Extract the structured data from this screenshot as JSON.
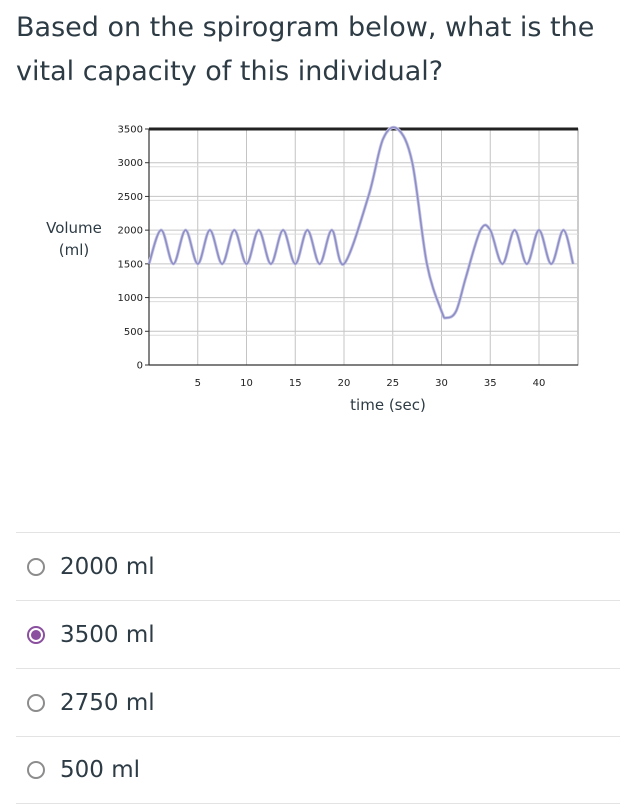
{
  "question": {
    "text": "Based on the spirogram below, what is the vital capacity of this individual?"
  },
  "chart_data": {
    "type": "line",
    "title": "",
    "xlabel": "time (sec)",
    "ylabel": "Volume (ml)",
    "xlim": [
      0,
      44
    ],
    "ylim": [
      0,
      3500
    ],
    "x_ticks": [
      5,
      10,
      15,
      20,
      25,
      30,
      35,
      40
    ],
    "y_ticks": [
      0,
      500,
      1000,
      1500,
      2000,
      2500,
      3000,
      3500
    ],
    "grid": true,
    "series": [
      {
        "color": "#8e8ec7",
        "x": [
          0,
          1.25,
          2.5,
          3.75,
          5,
          6.25,
          7.5,
          8.75,
          10,
          11.25,
          12.5,
          13.75,
          15,
          16.25,
          17.5,
          18.75,
          20,
          22.5,
          24,
          25.5,
          27,
          28.5,
          30,
          30.5,
          31.5,
          32.5,
          34,
          35,
          36.25,
          37.5,
          38.75,
          40,
          41.25,
          42.5,
          43.5
        ],
        "y": [
          1500,
          2000,
          1500,
          2000,
          1500,
          2000,
          1500,
          2000,
          1500,
          2000,
          1500,
          2000,
          1500,
          2000,
          1500,
          2000,
          1500,
          2500,
          3350,
          3500,
          3000,
          1500,
          800,
          700,
          800,
          1300,
          2000,
          2000,
          1500,
          2000,
          1500,
          2000,
          1500,
          2000,
          1500
        ]
      }
    ]
  },
  "answers": [
    {
      "label": "2000 ml",
      "selected": false
    },
    {
      "label": "3500 ml",
      "selected": true
    },
    {
      "label": "2750 ml",
      "selected": false
    },
    {
      "label": "500 ml",
      "selected": false
    }
  ]
}
